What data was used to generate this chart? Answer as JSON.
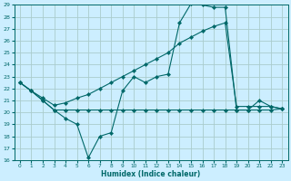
{
  "title": "",
  "xlabel": "Humidex (Indice chaleur)",
  "bg_color": "#cceeff",
  "grid_color": "#aacccc",
  "line_color": "#006868",
  "xlim": [
    -0.5,
    23.5
  ],
  "ylim": [
    16,
    29
  ],
  "yticks": [
    16,
    17,
    18,
    19,
    20,
    21,
    22,
    23,
    24,
    25,
    26,
    27,
    28,
    29
  ],
  "xticks": [
    0,
    1,
    2,
    3,
    4,
    5,
    6,
    7,
    8,
    9,
    10,
    11,
    12,
    13,
    14,
    15,
    16,
    17,
    18,
    19,
    20,
    21,
    22,
    23
  ],
  "line1_x": [
    0,
    1,
    2,
    3,
    4,
    5,
    6,
    7,
    8,
    9,
    10,
    11,
    12,
    13,
    14,
    15,
    16,
    17,
    18,
    19,
    20,
    21,
    22,
    23
  ],
  "line1_y": [
    22.5,
    21.8,
    21.0,
    20.2,
    19.5,
    19.0,
    16.2,
    18.0,
    18.3,
    21.8,
    23.0,
    22.5,
    23.0,
    23.2,
    27.5,
    29.1,
    29.0,
    28.8,
    28.8,
    20.2,
    20.2,
    21.0,
    20.5,
    20.3
  ],
  "line2_x": [
    0,
    1,
    2,
    3,
    4,
    5,
    6,
    7,
    8,
    9,
    10,
    11,
    12,
    13,
    14,
    15,
    16,
    17,
    18,
    19,
    20,
    21,
    22,
    23
  ],
  "line2_y": [
    22.5,
    21.8,
    21.0,
    20.2,
    20.2,
    20.2,
    20.2,
    20.2,
    20.2,
    20.2,
    20.2,
    20.2,
    20.2,
    20.2,
    20.2,
    20.2,
    20.2,
    20.2,
    20.2,
    20.2,
    20.2,
    20.2,
    20.2,
    20.3
  ],
  "line3_x": [
    0,
    1,
    2,
    3,
    4,
    5,
    6,
    7,
    8,
    9,
    10,
    11,
    12,
    13,
    14,
    15,
    16,
    17,
    18,
    19,
    20,
    21,
    22,
    23
  ],
  "line3_y": [
    22.5,
    21.8,
    21.2,
    20.6,
    20.8,
    21.2,
    21.5,
    22.0,
    22.5,
    23.0,
    23.5,
    24.0,
    24.5,
    25.0,
    25.8,
    26.3,
    26.8,
    27.2,
    27.5,
    20.5,
    20.5,
    20.5,
    20.5,
    20.3
  ]
}
